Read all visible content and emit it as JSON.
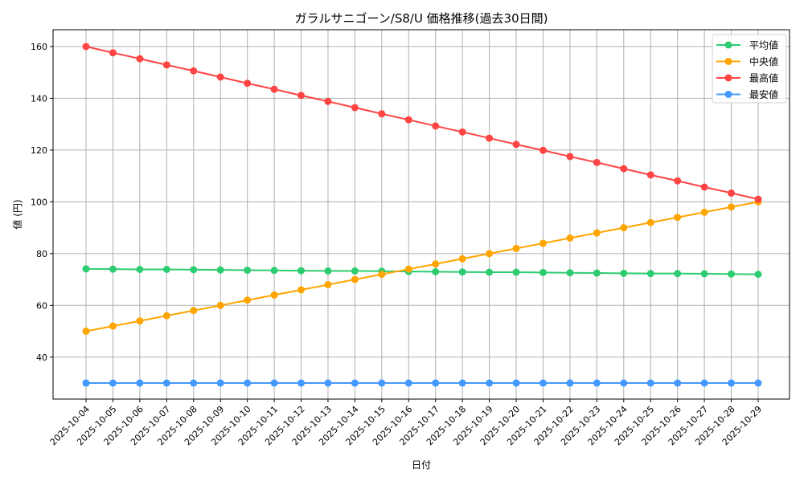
{
  "chart_data": {
    "type": "line",
    "title": "ガラルサニゴーン/S8/U 価格推移(過去30日間)",
    "xlabel": "日付",
    "ylabel": "値 (円)",
    "ylim": [
      23.8,
      166.5
    ],
    "yticks": [
      40,
      60,
      80,
      100,
      120,
      140,
      160
    ],
    "grid": true,
    "legend_position": "top-right",
    "x": [
      "2025-10-04",
      "2025-10-05",
      "2025-10-06",
      "2025-10-07",
      "2025-10-08",
      "2025-10-09",
      "2025-10-10",
      "2025-10-11",
      "2025-10-12",
      "2025-10-13",
      "2025-10-14",
      "2025-10-15",
      "2025-10-16",
      "2025-10-17",
      "2025-10-18",
      "2025-10-19",
      "2025-10-20",
      "2025-10-21",
      "2025-10-22",
      "2025-10-23",
      "2025-10-24",
      "2025-10-25",
      "2025-10-26",
      "2025-10-27",
      "2025-10-28",
      "2025-10-29"
    ],
    "series": [
      {
        "name": "平均値",
        "color": "#2ecc71",
        "values": [
          74.1,
          74.0,
          73.9,
          73.9,
          73.8,
          73.7,
          73.6,
          73.5,
          73.4,
          73.3,
          73.3,
          73.2,
          73.1,
          73.0,
          72.9,
          72.8,
          72.8,
          72.7,
          72.6,
          72.5,
          72.4,
          72.3,
          72.3,
          72.2,
          72.1,
          72.0
        ]
      },
      {
        "name": "中央値",
        "color": "#ffa500",
        "values": [
          50,
          52,
          54,
          56,
          58,
          60,
          62,
          64,
          66,
          68,
          70,
          72,
          74,
          76,
          78,
          80,
          82,
          84,
          86,
          88,
          90,
          92,
          94,
          96,
          98,
          100
        ]
      },
      {
        "name": "最高値",
        "color": "#ff4444",
        "values": [
          160,
          157.6,
          155.3,
          152.9,
          150.6,
          148.2,
          145.8,
          143.5,
          141.1,
          138.8,
          136.4,
          134.0,
          131.7,
          129.3,
          127.0,
          124.6,
          122.2,
          119.9,
          117.5,
          115.2,
          112.8,
          110.4,
          108.1,
          105.7,
          103.4,
          101.0
        ]
      },
      {
        "name": "最安値",
        "color": "#4499ff",
        "values": [
          30,
          30,
          30,
          30,
          30,
          30,
          30,
          30,
          30,
          30,
          30,
          30,
          30,
          30,
          30,
          30,
          30,
          30,
          30,
          30,
          30,
          30,
          30,
          30,
          30,
          30
        ]
      }
    ]
  }
}
